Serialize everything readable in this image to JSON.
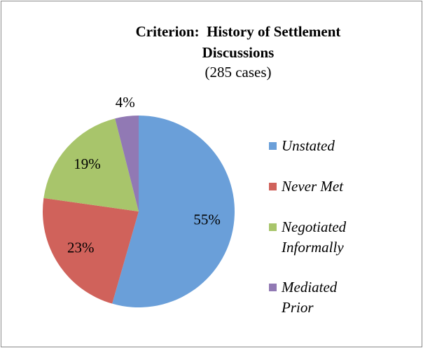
{
  "chart_data": {
    "type": "pie",
    "title": "Criterion:  History of Settlement Discussions",
    "subtitle": "(285 cases)",
    "categories": [
      "Unstated",
      "Never Met",
      "Negotiated Informally",
      "Mediated Prior"
    ],
    "values": [
      55,
      23,
      19,
      4
    ],
    "value_labels": [
      "55%",
      "23%",
      "19%",
      "4%"
    ],
    "colors": [
      "#6a9fd9",
      "#d0625b",
      "#a8c56b",
      "#9179b4"
    ],
    "legend": "right"
  }
}
